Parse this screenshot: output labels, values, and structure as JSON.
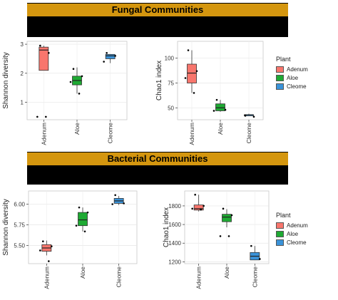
{
  "banners": [
    {
      "title": "Fungal Communities"
    },
    {
      "title": "Bacterial Communities"
    }
  ],
  "legend": {
    "title": "Plant",
    "items": [
      {
        "label": "Adenum",
        "color": "#f8766d"
      },
      {
        "label": "Aloe",
        "color": "#1eaa33"
      },
      {
        "label": "Cleome",
        "color": "#3a93d9"
      }
    ]
  },
  "chart_data": [
    {
      "type": "box",
      "title": "",
      "ylabel": "Shannon diversity",
      "categories": [
        "Adenum",
        "Aloe",
        "Cleome"
      ],
      "colors": [
        "#f8766d",
        "#1eaa33",
        "#3a93d9"
      ],
      "ylim": [
        0.4,
        3.1
      ],
      "yticks": [
        1,
        2,
        3
      ],
      "boxes": [
        {
          "min": 2.1,
          "q1": 2.1,
          "median": 2.8,
          "q3": 2.9,
          "max": 2.95
        },
        {
          "min": 1.3,
          "q1": 1.6,
          "median": 1.75,
          "q3": 1.9,
          "max": 2.2
        },
        {
          "min": 2.35,
          "q1": 2.5,
          "median": 2.6,
          "q3": 2.65,
          "max": 2.65
        }
      ],
      "points": [
        {
          "cat": 0,
          "y": 2.95
        },
        {
          "cat": 0,
          "y": 2.7
        },
        {
          "cat": 0,
          "y": 0.5
        },
        {
          "cat": 0,
          "y": 0.5
        },
        {
          "cat": 1,
          "y": 2.15
        },
        {
          "cat": 1,
          "y": 1.9
        },
        {
          "cat": 1,
          "y": 1.7
        },
        {
          "cat": 1,
          "y": 1.3
        },
        {
          "cat": 2,
          "y": 2.7
        },
        {
          "cat": 2,
          "y": 2.6
        },
        {
          "cat": 2,
          "y": 2.4
        }
      ]
    },
    {
      "type": "box",
      "title": "",
      "ylabel": "Chao1 index",
      "categories": [
        "Adenum",
        "Aloe",
        "Cleome"
      ],
      "colors": [
        "#f8766d",
        "#1eaa33",
        "#3a93d9"
      ],
      "ylim": [
        38,
        117
      ],
      "yticks": [
        50,
        75,
        100
      ],
      "boxes": [
        {
          "min": 65,
          "q1": 75,
          "median": 85,
          "q3": 94,
          "max": 108
        },
        {
          "min": 46,
          "q1": 47,
          "median": 50,
          "q3": 54,
          "max": 58
        },
        {
          "min": 42,
          "q1": 42,
          "median": 43,
          "q3": 43,
          "max": 44
        }
      ],
      "points": [
        {
          "cat": 0,
          "y": 108
        },
        {
          "cat": 0,
          "y": 87
        },
        {
          "cat": 0,
          "y": 80
        },
        {
          "cat": 0,
          "y": 65
        },
        {
          "cat": 1,
          "y": 58
        },
        {
          "cat": 1,
          "y": 48
        },
        {
          "cat": 1,
          "y": 47
        },
        {
          "cat": 2,
          "y": 42
        },
        {
          "cat": 2,
          "y": 41
        }
      ]
    },
    {
      "type": "box",
      "title": "",
      "ylabel": "Shannon diversity",
      "categories": [
        "Adenum",
        "Aloe",
        "Cleome"
      ],
      "colors": [
        "#f8766d",
        "#1eaa33",
        "#3a93d9"
      ],
      "ylim": [
        5.28,
        6.16
      ],
      "yticks": [
        5.5,
        5.75,
        6.0
      ],
      "tickLabels": [
        "5.50",
        "5.75",
        "6.00"
      ],
      "boxes": [
        {
          "min": 5.38,
          "q1": 5.43,
          "median": 5.47,
          "q3": 5.51,
          "max": 5.56
        },
        {
          "min": 5.67,
          "q1": 5.74,
          "median": 5.81,
          "q3": 5.9,
          "max": 5.96
        },
        {
          "min": 5.99,
          "q1": 6.01,
          "median": 6.04,
          "q3": 6.07,
          "max": 6.1
        }
      ],
      "points": [
        {
          "cat": 0,
          "y": 5.55
        },
        {
          "cat": 0,
          "y": 5.49
        },
        {
          "cat": 0,
          "y": 5.44
        },
        {
          "cat": 0,
          "y": 5.31
        },
        {
          "cat": 1,
          "y": 5.96
        },
        {
          "cat": 1,
          "y": 5.9
        },
        {
          "cat": 1,
          "y": 5.74
        },
        {
          "cat": 1,
          "y": 5.67
        },
        {
          "cat": 2,
          "y": 6.11
        },
        {
          "cat": 2,
          "y": 6.01
        },
        {
          "cat": 2,
          "y": 6.0
        }
      ]
    },
    {
      "type": "box",
      "title": "",
      "ylabel": "Chao1 index",
      "categories": [
        "Adenum",
        "Aloe",
        "Cleome"
      ],
      "colors": [
        "#f8766d",
        "#1eaa33",
        "#3a93d9"
      ],
      "ylim": [
        1180,
        1960
      ],
      "yticks": [
        1200,
        1400,
        1600,
        1800
      ],
      "boxes": [
        {
          "min": 1740,
          "q1": 1755,
          "median": 1770,
          "q3": 1810,
          "max": 1920
        },
        {
          "min": 1570,
          "q1": 1630,
          "median": 1680,
          "q3": 1710,
          "max": 1765
        },
        {
          "min": 1220,
          "q1": 1220,
          "median": 1260,
          "q3": 1300,
          "max": 1370
        }
      ],
      "points": [
        {
          "cat": 0,
          "y": 1920
        },
        {
          "cat": 0,
          "y": 1800
        },
        {
          "cat": 0,
          "y": 1770
        },
        {
          "cat": 0,
          "y": 1760
        },
        {
          "cat": 1,
          "y": 1770
        },
        {
          "cat": 1,
          "y": 1700
        },
        {
          "cat": 1,
          "y": 1475
        },
        {
          "cat": 1,
          "y": 1475
        },
        {
          "cat": 2,
          "y": 1370
        },
        {
          "cat": 2,
          "y": 1230
        }
      ]
    }
  ]
}
